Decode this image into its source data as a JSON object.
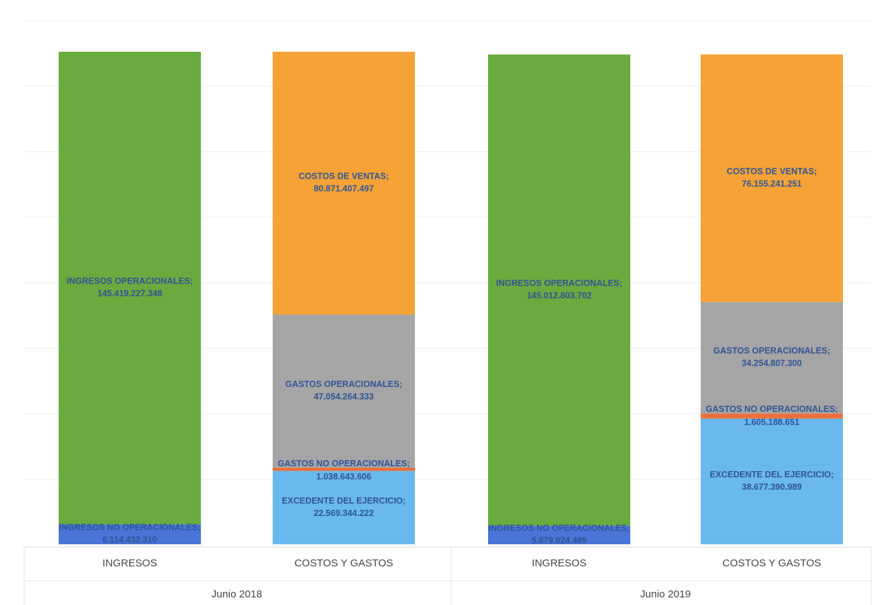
{
  "chart_data": {
    "type": "bar",
    "stacked": true,
    "grid": true,
    "groups": [
      {
        "label": "Junio 2018",
        "bars": [
          {
            "category": "INGRESOS",
            "segments": [
              {
                "name": "INGRESOS NO OPERACIONALES",
                "label": "INGRESOS NO OPERACIONALES;",
                "value_text": "6.114.432.310",
                "value": 6114432310,
                "color": "#4a74d8"
              },
              {
                "name": "INGRESOS OPERACIONALES",
                "label": "INGRESOS OPERACIONALES;",
                "value_text": "145.419.227.348",
                "value": 145419227348,
                "color": "#6aab3f"
              }
            ]
          },
          {
            "category": "COSTOS Y GASTOS",
            "segments": [
              {
                "name": "EXCEDENTE DEL EJERCICIO",
                "label": "EXCEDENTE DEL EJERCICIO;",
                "value_text": "22.569.344.222",
                "value": 22569344222,
                "color": "#6ab8f0"
              },
              {
                "name": "GASTOS NO OPERACIONALES",
                "label": "GASTOS NO OPERACIONALES;",
                "value_text": "1.038.643.606",
                "value": 1038643606,
                "color": "#e8713d"
              },
              {
                "name": "GASTOS OPERACIONALES",
                "label": "GASTOS OPERACIONALES;",
                "value_text": "47.054.264.333",
                "value": 47054264333,
                "color": "#a5a5a5"
              },
              {
                "name": "COSTOS DE VENTAS",
                "label": "COSTOS DE VENTAS;",
                "value_text": "80.871.407.497",
                "value": 80871407497,
                "color": "#f6a236"
              }
            ]
          }
        ]
      },
      {
        "label": "Junio 2019",
        "bars": [
          {
            "category": "INGRESOS",
            "segments": [
              {
                "name": "INGRESOS NO OPERACIONALES",
                "label": "INGRESOS NO OPERACIONALES;",
                "value_text": "5.679.824.489",
                "value": 5679824489,
                "color": "#4a74d8"
              },
              {
                "name": "INGRESOS OPERACIONALES",
                "label": "INGRESOS OPERACIONALES;",
                "value_text": "145.012.803.702",
                "value": 145012803702,
                "color": "#6aab3f"
              }
            ]
          },
          {
            "category": "COSTOS Y GASTOS",
            "segments": [
              {
                "name": "EXCEDENTE DEL EJERCICIO",
                "label": "EXCEDENTE DEL EJERCICIO;",
                "value_text": "38.677.390.989",
                "value": 38677390989,
                "color": "#6ab8f0"
              },
              {
                "name": "GASTOS NO OPERACIONALES",
                "label": "GASTOS NO OPERACIONALES;",
                "value_text": "1.605.188.651",
                "value": 1605188651,
                "color": "#e8713d"
              },
              {
                "name": "GASTOS OPERACIONALES",
                "label": "GASTOS OPERACIONALES;",
                "value_text": "34.254.807.300",
                "value": 34254807300,
                "color": "#a5a5a5"
              },
              {
                "name": "COSTOS DE VENTAS",
                "label": "COSTOS DE VENTAS;",
                "value_text": "76.155.241.251",
                "value": 76155241251,
                "color": "#f6a236"
              }
            ]
          }
        ]
      }
    ],
    "label_color": "#2f5597"
  }
}
